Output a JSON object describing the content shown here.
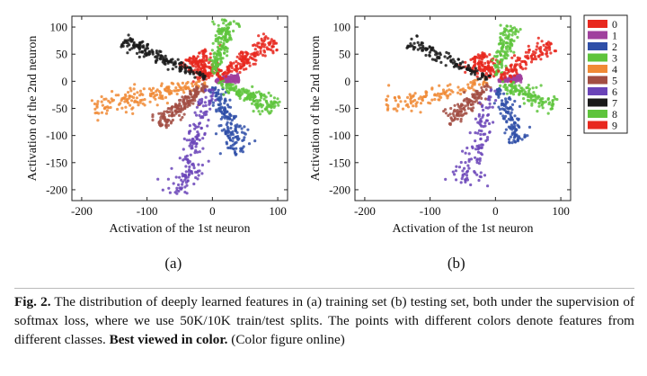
{
  "chart_data": [
    {
      "type": "scatter",
      "panel_label": "(a)",
      "xlabel": "Activation of the 1st neuron",
      "ylabel": "Activation of the 2nd neuron",
      "xlim": [
        -215,
        115
      ],
      "ylim": [
        -220,
        120
      ],
      "xticks": [
        -200,
        -100,
        0,
        100
      ],
      "yticks": [
        100,
        50,
        0,
        -50,
        -100,
        -150,
        -200
      ],
      "grid": false,
      "series": [
        {
          "name": "0",
          "color": "#e8281e",
          "center": [
            -25,
            70
          ],
          "direction": [
            -0.55,
            0.84
          ],
          "extent": [
            8,
            55
          ],
          "spread": 11
        },
        {
          "name": "1",
          "color": "#a0409e",
          "center": [
            25,
            3
          ],
          "direction": [
            1.0,
            0.15
          ],
          "extent": [
            5,
            40
          ],
          "spread": 3
        },
        {
          "name": "2",
          "color": "#2f4fa8",
          "center": [
            25,
            -70
          ],
          "direction": [
            0.32,
            -0.95
          ],
          "extent": [
            10,
            140
          ],
          "spread": 9
        },
        {
          "name": "3",
          "color": "#5ec43c",
          "center": [
            20,
            65
          ],
          "direction": [
            0.22,
            0.98
          ],
          "extent": [
            10,
            115
          ],
          "spread": 7
        },
        {
          "name": "4",
          "color": "#f08a35",
          "center": [
            -110,
            -30
          ],
          "direction": [
            -0.97,
            -0.26
          ],
          "extent": [
            12,
            190
          ],
          "spread": 9
        },
        {
          "name": "5",
          "color": "#a24e43",
          "center": [
            -50,
            -50
          ],
          "direction": [
            -0.72,
            -0.7
          ],
          "extent": [
            12,
            115
          ],
          "spread": 7
        },
        {
          "name": "6",
          "color": "#6a44b8",
          "center": [
            -30,
            -120
          ],
          "direction": [
            -0.24,
            -0.97
          ],
          "extent": [
            15,
            215
          ],
          "spread": 10
        },
        {
          "name": "7",
          "color": "#1a1a1a",
          "center": [
            -80,
            40
          ],
          "direction": [
            -0.88,
            0.48
          ],
          "extent": [
            12,
            155
          ],
          "spread": 6
        },
        {
          "name": "8",
          "color": "#5ec43c",
          "center": [
            60,
            -35
          ],
          "direction": [
            0.9,
            -0.44
          ],
          "extent": [
            10,
            110
          ],
          "spread": 8
        },
        {
          "name": "9",
          "color": "#e8281e",
          "center": [
            50,
            45
          ],
          "direction": [
            0.78,
            0.63
          ],
          "extent": [
            10,
            120
          ],
          "spread": 8
        }
      ]
    },
    {
      "type": "scatter",
      "panel_label": "(b)",
      "xlabel": "Activation of the 1st neuron",
      "ylabel": "Activation of the 2nd neuron",
      "xlim": [
        -215,
        115
      ],
      "ylim": [
        -220,
        120
      ],
      "xticks": [
        -200,
        -100,
        0,
        100
      ],
      "yticks": [
        100,
        50,
        0,
        -50,
        -100,
        -150,
        -200
      ],
      "grid": false,
      "legend": "right",
      "series": [
        {
          "name": "0",
          "color": "#e8281e",
          "center": [
            -25,
            55
          ],
          "direction": [
            -0.55,
            0.84
          ],
          "extent": [
            8,
            55
          ],
          "spread": 11
        },
        {
          "name": "1",
          "color": "#a0409e",
          "center": [
            25,
            3
          ],
          "direction": [
            1.0,
            0.15
          ],
          "extent": [
            5,
            40
          ],
          "spread": 3
        },
        {
          "name": "2",
          "color": "#2f4fa8",
          "center": [
            20,
            -60
          ],
          "direction": [
            0.32,
            -0.95
          ],
          "extent": [
            10,
            120
          ],
          "spread": 9
        },
        {
          "name": "3",
          "color": "#5ec43c",
          "center": [
            15,
            60
          ],
          "direction": [
            0.22,
            0.98
          ],
          "extent": [
            10,
            105
          ],
          "spread": 7
        },
        {
          "name": "4",
          "color": "#f08a35",
          "center": [
            -100,
            -25
          ],
          "direction": [
            -0.97,
            -0.26
          ],
          "extent": [
            12,
            175
          ],
          "spread": 9
        },
        {
          "name": "5",
          "color": "#a24e43",
          "center": [
            -45,
            -45
          ],
          "direction": [
            -0.72,
            -0.7
          ],
          "extent": [
            12,
            105
          ],
          "spread": 7
        },
        {
          "name": "6",
          "color": "#6a44b8",
          "center": [
            -25,
            -100
          ],
          "direction": [
            -0.24,
            -0.97
          ],
          "extent": [
            15,
            195
          ],
          "spread": 10
        },
        {
          "name": "7",
          "color": "#1a1a1a",
          "center": [
            -80,
            40
          ],
          "direction": [
            -0.88,
            0.48
          ],
          "extent": [
            12,
            150
          ],
          "spread": 6
        },
        {
          "name": "8",
          "color": "#5ec43c",
          "center": [
            55,
            -30
          ],
          "direction": [
            0.9,
            -0.44
          ],
          "extent": [
            10,
            100
          ],
          "spread": 8
        },
        {
          "name": "9",
          "color": "#e8281e",
          "center": [
            50,
            45
          ],
          "direction": [
            0.78,
            0.63
          ],
          "extent": [
            10,
            110
          ],
          "spread": 8
        }
      ]
    }
  ],
  "caption": {
    "label": "Fig. 2.",
    "text": " The distribution of deeply learned features in (a) training set (b) testing set, both under the supervision of softmax loss, where we use 50K/10K train/test splits. The points with different colors denote features from different classes. ",
    "emphasis": "Best viewed in color.",
    "suffix": " (Color figure online)"
  }
}
